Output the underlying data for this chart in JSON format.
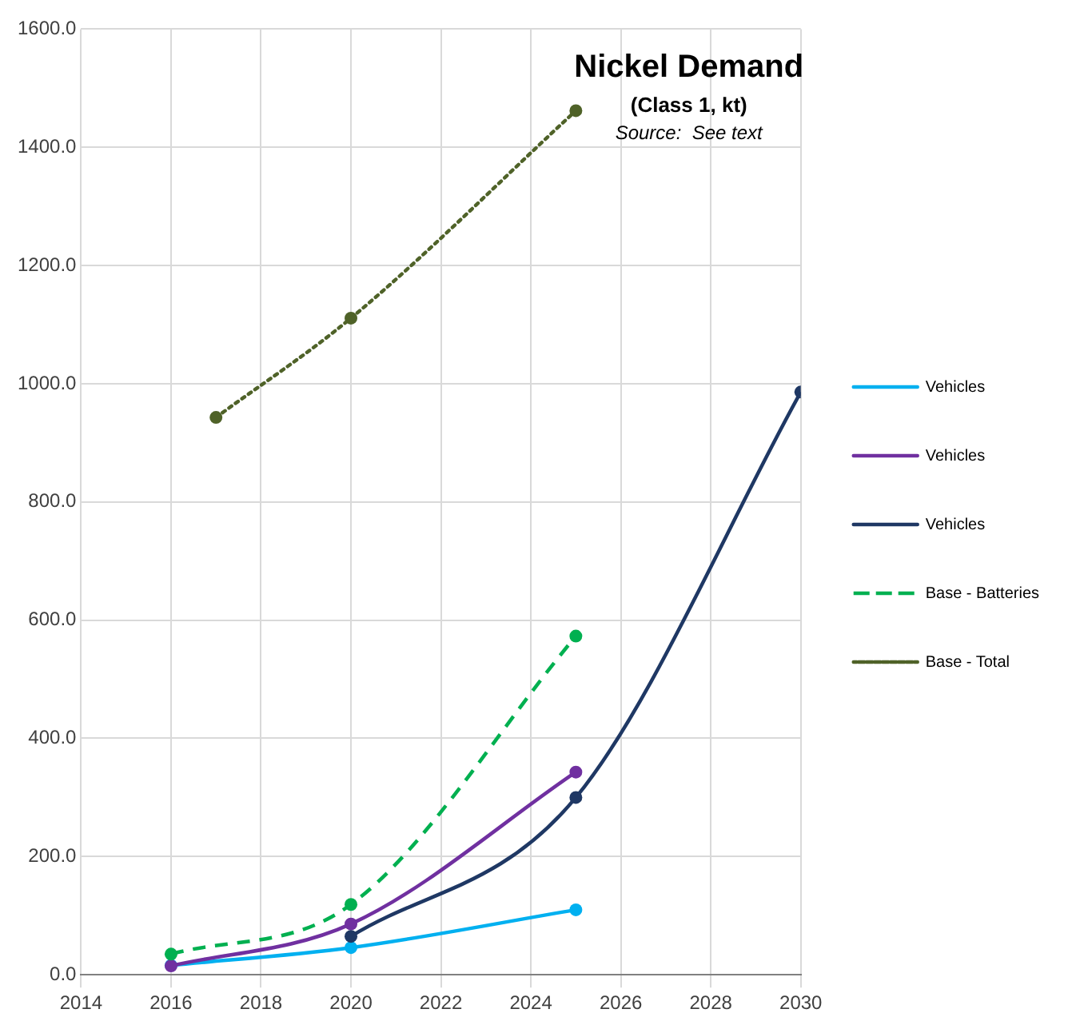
{
  "chart_data": {
    "type": "line",
    "title": "Nickel Demand",
    "subtitle": "(Class 1, kt)",
    "annotations": [
      "Source:  See text"
    ],
    "xlim": [
      2014,
      2030
    ],
    "xticks": [
      2014,
      2016,
      2018,
      2020,
      2022,
      2024,
      2026,
      2028,
      2030
    ],
    "ylim": [
      0,
      1600
    ],
    "yticks": [
      {
        "value": 0,
        "label": "0.0"
      },
      {
        "value": 200,
        "label": "200.0"
      },
      {
        "value": 400,
        "label": "400.0"
      },
      {
        "value": 600,
        "label": "600.0"
      },
      {
        "value": 800,
        "label": "800.0"
      },
      {
        "value": 1000,
        "label": "1000.0"
      },
      {
        "value": 1200,
        "label": "1200.0"
      },
      {
        "value": 1400,
        "label": "1400.0"
      },
      {
        "value": 1600,
        "label": "1600.0"
      }
    ],
    "grid": true,
    "legend": "right",
    "marker": "circle",
    "series": [
      {
        "name": "Vehicles",
        "color": "#00b0f0",
        "x": [
          2016,
          2020,
          2025
        ],
        "values": [
          16,
          46,
          110
        ],
        "line_style": "solid"
      },
      {
        "name": "Vehicles",
        "color": "#7030a0",
        "x": [
          2016,
          2020,
          2025
        ],
        "values": [
          15,
          86,
          343
        ],
        "line_style": "solid"
      },
      {
        "name": "Vehicles",
        "color": "#1f3864",
        "x": [
          2020,
          2025,
          2030
        ],
        "values": [
          65,
          300,
          986
        ],
        "line_style": "solid"
      },
      {
        "name": "Base - Batteries",
        "color": "#00b050",
        "x": [
          2016,
          2020,
          2025
        ],
        "values": [
          35,
          119,
          573
        ],
        "line_style": "dashed"
      },
      {
        "name": "Base - Total",
        "color": "#4f6228",
        "x": [
          2017,
          2020,
          2025
        ],
        "values": [
          943,
          1111,
          1462
        ],
        "line_style": "dotted"
      }
    ]
  }
}
